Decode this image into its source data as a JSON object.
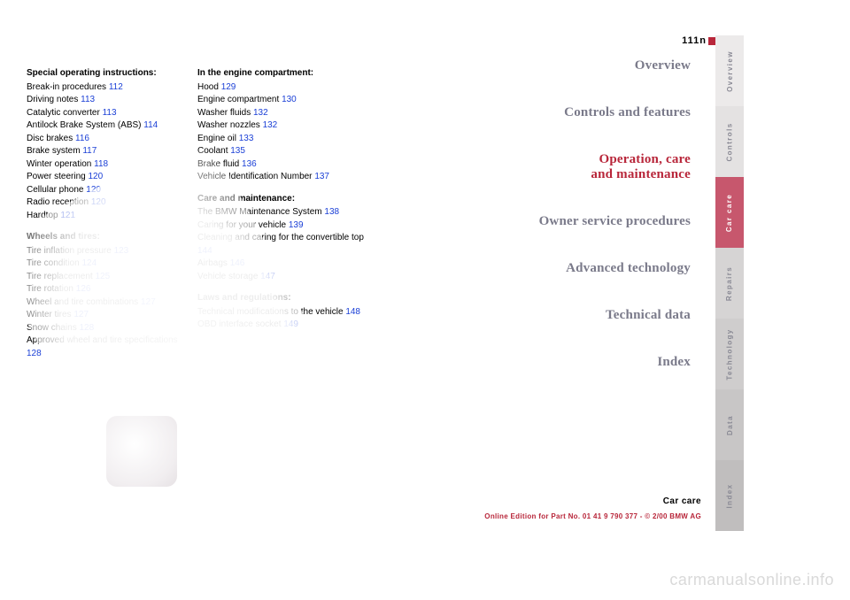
{
  "page_number": "111",
  "col1": {
    "special": {
      "heading": "Special operating instructions:",
      "items": [
        {
          "t": "Break-in procedures",
          "p": "112"
        },
        {
          "t": "Driving notes",
          "p": "113"
        },
        {
          "t": "Catalytic converter",
          "p": "113"
        },
        {
          "t": "Antilock Brake System (ABS)",
          "p": "114"
        },
        {
          "t": "Disc brakes",
          "p": "116"
        },
        {
          "t": "Brake system",
          "p": "117"
        },
        {
          "t": "Winter operation",
          "p": "118"
        },
        {
          "t": "Power steering",
          "p": "120"
        },
        {
          "t": "Cellular phone",
          "p": "120"
        },
        {
          "t": "Radio reception",
          "p": "120"
        },
        {
          "t": "Hardtop",
          "p": "121"
        }
      ]
    },
    "wheels": {
      "heading": "Wheels and tires:",
      "items": [
        {
          "t": "Tire inflation pressure",
          "p": "123"
        },
        {
          "t": "Tire condition",
          "p": "124"
        },
        {
          "t": "Tire replacement",
          "p": "125"
        },
        {
          "t": "Tire rotation",
          "p": "126"
        },
        {
          "t": "Wheel and tire combinations",
          "p": "127"
        },
        {
          "t": "Winter tires",
          "p": "127"
        },
        {
          "t": "Snow chains",
          "p": "128"
        },
        {
          "t": "Approved wheel and tire specifications",
          "p": "128"
        }
      ]
    }
  },
  "col2": {
    "engine": {
      "heading": "In the engine compartment:",
      "items": [
        {
          "t": "Hood",
          "p": "129"
        },
        {
          "t": "Engine compartment",
          "p": "130"
        },
        {
          "t": "Washer fluids",
          "p": "132"
        },
        {
          "t": "Washer nozzles",
          "p": "132"
        },
        {
          "t": "Engine oil",
          "p": "133"
        },
        {
          "t": "Coolant",
          "p": "135"
        },
        {
          "t": "Brake fluid",
          "p": "136"
        },
        {
          "t": "Vehicle Identification Number",
          "p": "137"
        }
      ]
    },
    "care": {
      "heading": "Care and maintenance:",
      "items": [
        {
          "t": "The BMW Maintenance System",
          "p": "138"
        },
        {
          "t": "Caring for your vehicle",
          "p": "139"
        },
        {
          "t": "Cleaning and caring for the convertible top",
          "p": "144"
        },
        {
          "t": "Airbags",
          "p": "146"
        },
        {
          "t": "Vehicle storage",
          "p": "147"
        }
      ]
    },
    "laws": {
      "heading": "Laws and regulations:",
      "items": [
        {
          "t": "Technical modifications to the vehicle",
          "p": "148"
        },
        {
          "t": "OBD interface socket",
          "p": "149"
        }
      ]
    }
  },
  "sections": [
    {
      "label": "Overview",
      "active": false
    },
    {
      "label": "Controls and features",
      "active": false
    },
    {
      "label": "Operation, care\nand maintenance",
      "active": true
    },
    {
      "label": "Owner service procedures",
      "active": false
    },
    {
      "label": "Advanced technology",
      "active": false
    },
    {
      "label": "Technical data",
      "active": false
    },
    {
      "label": "Index",
      "active": false
    }
  ],
  "tabs": [
    "Overview",
    "Controls",
    "Car care",
    "Repairs",
    "Technology",
    "Data",
    "Index"
  ],
  "footer": {
    "care": "Car care",
    "line": "Online Edition for Part No. 01 41 9 790 377 - © 2/00 BMW AG"
  },
  "watermark": "carmanualsonline.info",
  "colors": {
    "link": "#1a3fd6",
    "brand": "#b8263a",
    "tab_active_bg": "#c7576d",
    "section_inactive": "#7a7a8a"
  }
}
